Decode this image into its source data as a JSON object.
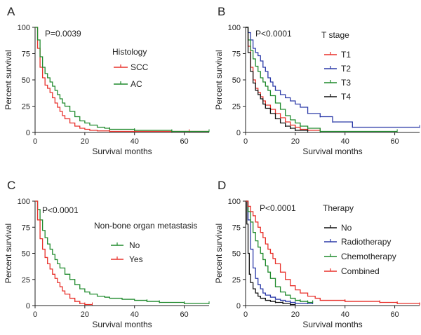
{
  "colors": {
    "red": "#e8302a",
    "green": "#1f8a2c",
    "blue": "#2b3aa8",
    "black": "#111111",
    "axis": "#222222"
  },
  "chart_data": [
    {
      "type": "line",
      "panel_label": "A",
      "annotation": "P=0.0039",
      "xlabel": "Survival months",
      "ylabel": "Percent survival",
      "xlim": [
        0,
        70
      ],
      "ylim": [
        0,
        100
      ],
      "xticks": [
        0,
        20,
        40,
        60
      ],
      "yticks": [
        0,
        25,
        50,
        75,
        100
      ],
      "legend": {
        "title": "Histology",
        "placement": "center-right"
      },
      "series": [
        {
          "name": "SCC",
          "color": "red",
          "x": [
            0,
            1,
            2,
            3,
            4,
            5,
            6,
            7,
            8,
            9,
            10,
            11,
            12,
            14,
            16,
            18,
            20,
            22,
            25,
            30,
            40,
            62,
            70
          ],
          "y": [
            100,
            80,
            62,
            52,
            45,
            42,
            38,
            33,
            28,
            24,
            20,
            16,
            13,
            9,
            6,
            4,
            3,
            2,
            1.5,
            1,
            1,
            1,
            1
          ]
        },
        {
          "name": "AC",
          "color": "green",
          "x": [
            0,
            1,
            2,
            3,
            4,
            5,
            6,
            7,
            8,
            9,
            10,
            11,
            12,
            14,
            16,
            18,
            20,
            22,
            25,
            28,
            30,
            40,
            55,
            70
          ],
          "y": [
            100,
            88,
            72,
            62,
            56,
            52,
            48,
            44,
            40,
            36,
            32,
            28,
            25,
            20,
            15,
            11,
            9,
            7,
            5,
            4,
            3,
            2,
            1,
            1
          ]
        }
      ]
    },
    {
      "type": "line",
      "panel_label": "B",
      "annotation": "P<0.0001",
      "xlabel": "Survival months",
      "ylabel": "Percent survival",
      "xlim": [
        0,
        70
      ],
      "ylim": [
        0,
        100
      ],
      "xticks": [
        0,
        20,
        40,
        60
      ],
      "yticks": [
        0,
        25,
        50,
        75,
        100
      ],
      "legend": {
        "title": "T stage",
        "placement": "top-right"
      },
      "series": [
        {
          "name": "T1",
          "color": "red",
          "x": [
            0,
            1,
            2,
            3,
            4,
            5,
            6,
            7,
            8,
            10,
            12,
            14,
            16,
            18,
            20,
            22,
            25,
            30
          ],
          "y": [
            100,
            82,
            62,
            50,
            42,
            38,
            34,
            30,
            26,
            22,
            18,
            14,
            10,
            7,
            5,
            3,
            2,
            2
          ]
        },
        {
          "name": "T2",
          "color": "blue",
          "x": [
            0,
            1,
            2,
            3,
            4,
            5,
            6,
            7,
            8,
            9,
            10,
            11,
            12,
            14,
            16,
            18,
            20,
            22,
            25,
            30,
            35,
            43,
            70
          ],
          "y": [
            100,
            95,
            88,
            80,
            76,
            73,
            68,
            62,
            58,
            52,
            48,
            44,
            40,
            36,
            33,
            30,
            27,
            24,
            18,
            15,
            10,
            5,
            5
          ]
        },
        {
          "name": "T3",
          "color": "green",
          "x": [
            0,
            1,
            2,
            3,
            4,
            5,
            6,
            7,
            8,
            9,
            10,
            12,
            14,
            16,
            18,
            20,
            22,
            25,
            30,
            61
          ],
          "y": [
            100,
            88,
            78,
            70,
            63,
            58,
            52,
            48,
            44,
            40,
            35,
            28,
            22,
            16,
            12,
            9,
            6,
            4,
            1,
            1
          ]
        },
        {
          "name": "T4",
          "color": "black",
          "x": [
            0,
            1,
            2,
            3,
            4,
            5,
            6,
            7,
            8,
            10,
            12,
            14,
            16,
            18,
            20,
            25
          ],
          "y": [
            100,
            76,
            58,
            47,
            40,
            36,
            32,
            27,
            23,
            18,
            13,
            9,
            6,
            4,
            2,
            1
          ]
        }
      ]
    },
    {
      "type": "line",
      "panel_label": "C",
      "annotation": "P<0.0001",
      "xlabel": "Survival months",
      "ylabel": "Percent survival",
      "xlim": [
        0,
        70
      ],
      "ylim": [
        0,
        100
      ],
      "xticks": [
        0,
        20,
        40,
        60
      ],
      "yticks": [
        0,
        25,
        50,
        75,
        100
      ],
      "legend": {
        "title": "Non-bone organ metastasis",
        "placement": "center-right"
      },
      "series": [
        {
          "name": "No",
          "color": "green",
          "x": [
            0,
            1,
            2,
            3,
            4,
            5,
            6,
            7,
            8,
            9,
            10,
            12,
            14,
            16,
            18,
            20,
            22,
            25,
            28,
            30,
            35,
            40,
            45,
            50,
            60,
            70
          ],
          "y": [
            100,
            92,
            82,
            72,
            65,
            59,
            54,
            49,
            44,
            40,
            36,
            30,
            25,
            20,
            16,
            13,
            11,
            9,
            8,
            7,
            6,
            5,
            4,
            3,
            2,
            2
          ]
        },
        {
          "name": "Yes",
          "color": "red",
          "x": [
            0,
            1,
            2,
            3,
            4,
            5,
            6,
            7,
            8,
            9,
            10,
            11,
            12,
            14,
            16,
            18,
            20,
            23
          ],
          "y": [
            100,
            82,
            64,
            54,
            46,
            40,
            35,
            30,
            26,
            22,
            18,
            14,
            11,
            7,
            4,
            2,
            1,
            1
          ]
        }
      ]
    },
    {
      "type": "line",
      "panel_label": "D",
      "annotation": "P<0.0001",
      "xlabel": "Survival months",
      "ylabel": "Percent survival",
      "xlim": [
        0,
        70
      ],
      "ylim": [
        0,
        100
      ],
      "xticks": [
        0,
        20,
        40,
        60
      ],
      "yticks": [
        0,
        25,
        50,
        75,
        100
      ],
      "legend": {
        "title": "Therapy",
        "placement": "top-right"
      },
      "series": [
        {
          "name": "No",
          "color": "black",
          "x": [
            0,
            0.5,
            1,
            1.5,
            2,
            3,
            4,
            5,
            6,
            8,
            10,
            12,
            15,
            18,
            20
          ],
          "y": [
            100,
            78,
            50,
            30,
            22,
            16,
            12,
            9,
            7,
            5,
            4,
            3,
            2,
            1,
            1
          ]
        },
        {
          "name": "Radiotherapy",
          "color": "blue",
          "x": [
            0,
            1,
            2,
            3,
            4,
            5,
            6,
            7,
            8,
            10,
            12,
            14,
            16,
            18,
            20,
            25,
            27
          ],
          "y": [
            100,
            82,
            54,
            36,
            26,
            20,
            16,
            12,
            10,
            8,
            6,
            5,
            4,
            3,
            2,
            2,
            2
          ]
        },
        {
          "name": "Chemotherapy",
          "color": "green",
          "x": [
            0,
            1,
            2,
            3,
            4,
            5,
            6,
            7,
            8,
            9,
            10,
            12,
            14,
            16,
            18,
            20,
            22,
            25,
            27
          ],
          "y": [
            100,
            90,
            80,
            70,
            62,
            56,
            50,
            44,
            38,
            32,
            26,
            18,
            13,
            10,
            7,
            5,
            4,
            3,
            3
          ]
        },
        {
          "name": "Combined",
          "color": "red",
          "x": [
            0,
            1,
            2,
            3,
            4,
            5,
            6,
            7,
            8,
            9,
            10,
            11,
            12,
            14,
            16,
            18,
            20,
            22,
            25,
            28,
            30,
            40,
            54,
            61,
            70
          ],
          "y": [
            100,
            95,
            90,
            86,
            80,
            75,
            70,
            65,
            59,
            54,
            50,
            45,
            40,
            32,
            25,
            19,
            15,
            12,
            9,
            7,
            5,
            4,
            3,
            2,
            1
          ]
        }
      ]
    }
  ]
}
